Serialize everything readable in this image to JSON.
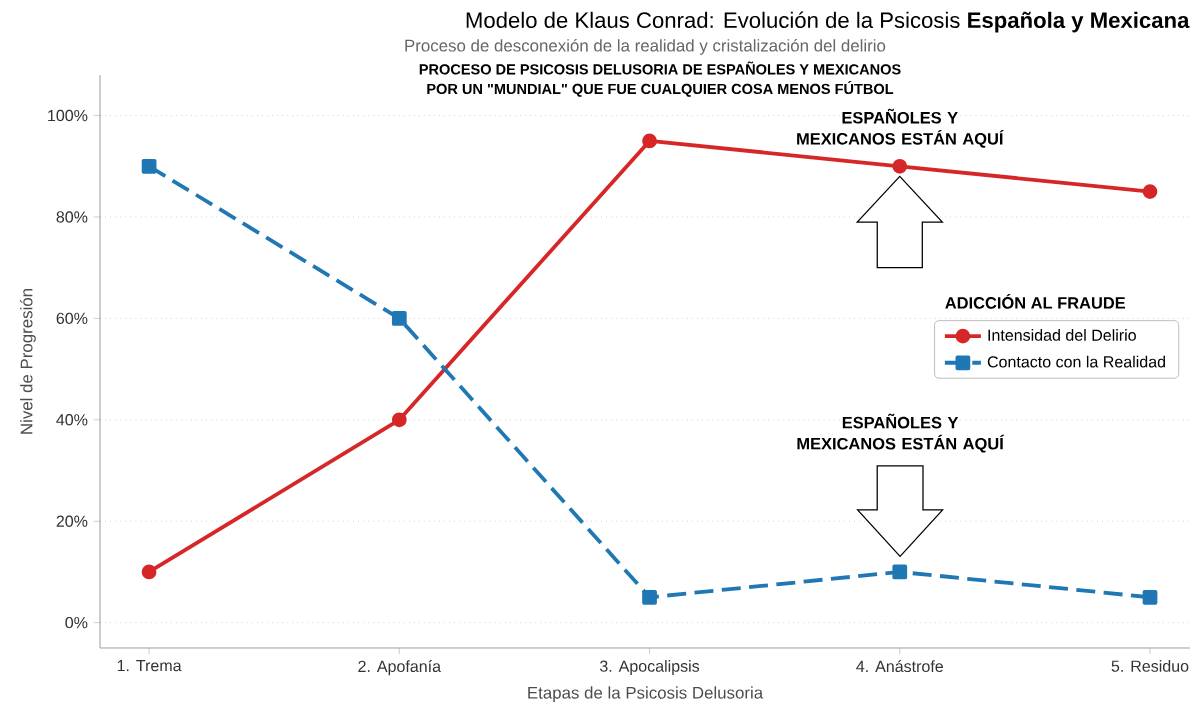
{
  "chart_data": {
    "type": "line",
    "title": "Modelo de Klaus Conrad: Evolución de la Psicosis **Española y Mexicana**",
    "subtitle": "Proceso de desconexión de la realidad y cristalización del delirio",
    "xlabel": "Etapas de la Psicosis Delusoria",
    "ylabel": "Nivel de Progresión",
    "legend_title": "ADICCIÓN AL FRAUDE",
    "categories": [
      "1. Trema",
      "2. Apofanía",
      "3. Apocalipsis",
      "4. Anástrofe",
      "5. Residuo"
    ],
    "series": [
      {
        "name": "Intensidad del Delirio",
        "color": "#d62728",
        "values": [
          10,
          40,
          95,
          90,
          85
        ],
        "marker": "circle",
        "line_style": "solid"
      },
      {
        "name": "Contacto con la Realidad",
        "color": "#1f77b4",
        "values": [
          90,
          60,
          5,
          10,
          5
        ],
        "marker": "square",
        "line_style": "dashed"
      }
    ],
    "ylim": [
      -5,
      108
    ],
    "yticks": [
      {
        "value": 0,
        "label": "0%"
      },
      {
        "value": 20,
        "label": "20%"
      },
      {
        "value": 40,
        "label": "40%"
      },
      {
        "value": 60,
        "label": "60%"
      },
      {
        "value": 80,
        "label": "80%"
      },
      {
        "value": 100,
        "label": "100%"
      }
    ],
    "grid": "y",
    "legend": "right",
    "annotations": [
      "PROCESO DE PSICOSIS DELUSORIA DE ESPAÑOLES Y MEXICANOS",
      "POR UN \"MUNDIAL\" QUE FUE CUALQUIER COSA MENOS FÚTBOL",
      {
        "text": "ESPAÑOLES Y MEXICANOS ESTÁN AQUÍ",
        "x": "4. Anástrofe",
        "y": 90
      },
      "ESPAÑOLES Y MEXICANOS ESTÁN AQUÍ"
    ]
  }
}
